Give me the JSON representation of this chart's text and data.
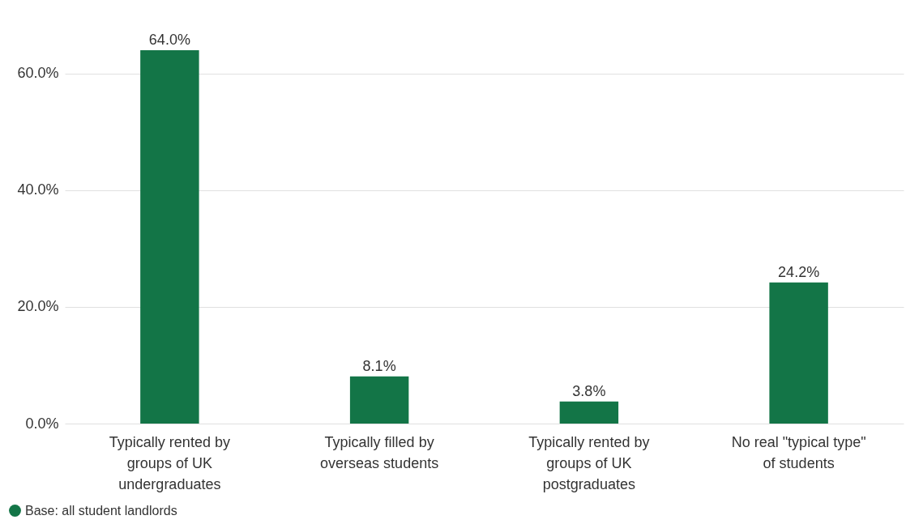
{
  "chart_data": {
    "type": "bar",
    "categories": [
      "Typically rented by groups of UK undergraduates",
      "Typically filled by overseas students",
      "Typically rented by groups of UK postgraduates",
      "No real \"typical type\" of students"
    ],
    "series": [
      {
        "name": "Base: all student landlords",
        "color": "#137547",
        "values": [
          64.0,
          8.1,
          3.8,
          24.2
        ]
      }
    ],
    "value_labels": [
      "64.0%",
      "8.1%",
      "3.8%",
      "24.2%"
    ],
    "ylim": [
      0,
      64
    ],
    "yticks": [
      {
        "value": 0,
        "label": "0.0%"
      },
      {
        "value": 20,
        "label": "20.0%"
      },
      {
        "value": 40,
        "label": "40.0%"
      },
      {
        "value": 60,
        "label": "60.0%"
      }
    ],
    "grid": "y",
    "legend": "bottom left"
  }
}
